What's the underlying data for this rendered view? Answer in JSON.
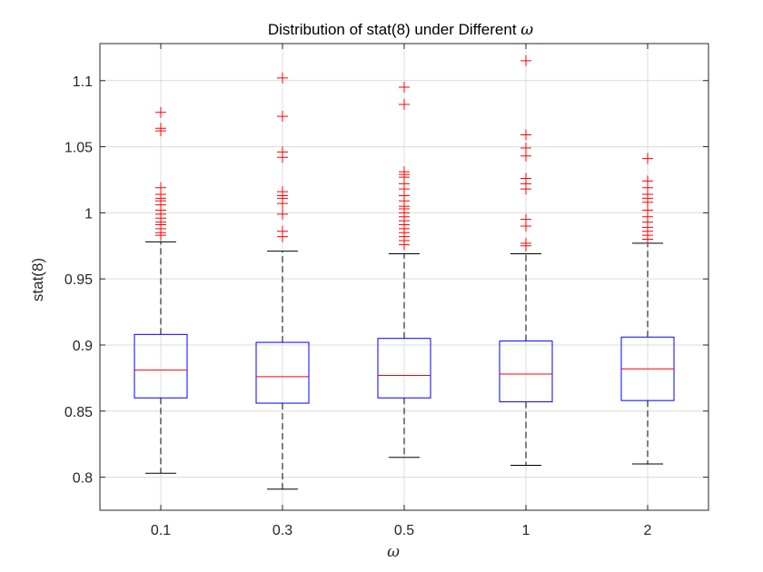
{
  "chart_data": {
    "type": "boxplot",
    "title_prefix": "Distribution of stat(8) under Different ",
    "title_symbol": "ω",
    "xlabel": "ω",
    "ylabel": "stat(8)",
    "ylim": [
      0.775,
      1.128
    ],
    "yticks": [
      0.8,
      0.85,
      0.9,
      0.95,
      1,
      1.05,
      1.1
    ],
    "ytick_labels": [
      "0.8",
      "0.85",
      "0.9",
      "0.95",
      "1",
      "1.05",
      "1.1"
    ],
    "grid": true,
    "colors": {
      "box": "#0000ff",
      "median": "#ff0000",
      "whisker": "#000000",
      "outlier": "#ff0000",
      "grid": "#dcdcdc",
      "axes": "#262626"
    },
    "categories": [
      "0.1",
      "0.3",
      "0.5",
      "1",
      "2"
    ],
    "boxes": [
      {
        "q1": 0.86,
        "median": 0.881,
        "q3": 0.908,
        "whisker_low": 0.803,
        "whisker_high": 0.978,
        "outliers": [
          0.983,
          0.985,
          0.988,
          0.991,
          0.993,
          0.996,
          0.999,
          1.002,
          1.006,
          1.009,
          1.011,
          1.014,
          1.019,
          1.062,
          1.064,
          1.076
        ]
      },
      {
        "q1": 0.856,
        "median": 0.876,
        "q3": 0.902,
        "whisker_low": 0.791,
        "whisker_high": 0.971,
        "outliers": [
          0.982,
          0.986,
          0.999,
          1.007,
          1.011,
          1.013,
          1.016,
          1.042,
          1.046,
          1.073,
          1.102
        ]
      },
      {
        "q1": 0.86,
        "median": 0.877,
        "q3": 0.905,
        "whisker_low": 0.815,
        "whisker_high": 0.969,
        "outliers": [
          0.976,
          0.979,
          0.982,
          0.985,
          0.988,
          0.991,
          0.994,
          0.997,
          1.0,
          1.003,
          1.005,
          1.009,
          1.013,
          1.018,
          1.022,
          1.027,
          1.029,
          1.031,
          1.082,
          1.095
        ]
      },
      {
        "q1": 0.857,
        "median": 0.878,
        "q3": 0.903,
        "whisker_low": 0.809,
        "whisker_high": 0.969,
        "outliers": [
          0.975,
          0.977,
          0.99,
          0.995,
          1.018,
          1.022,
          1.026,
          1.043,
          1.049,
          1.059,
          1.115
        ]
      },
      {
        "q1": 0.858,
        "median": 0.882,
        "q3": 0.906,
        "whisker_low": 0.81,
        "whisker_high": 0.977,
        "outliers": [
          0.98,
          0.983,
          0.986,
          0.989,
          0.993,
          0.997,
          1.002,
          1.008,
          1.011,
          1.014,
          1.019,
          1.024,
          1.041
        ]
      }
    ]
  }
}
